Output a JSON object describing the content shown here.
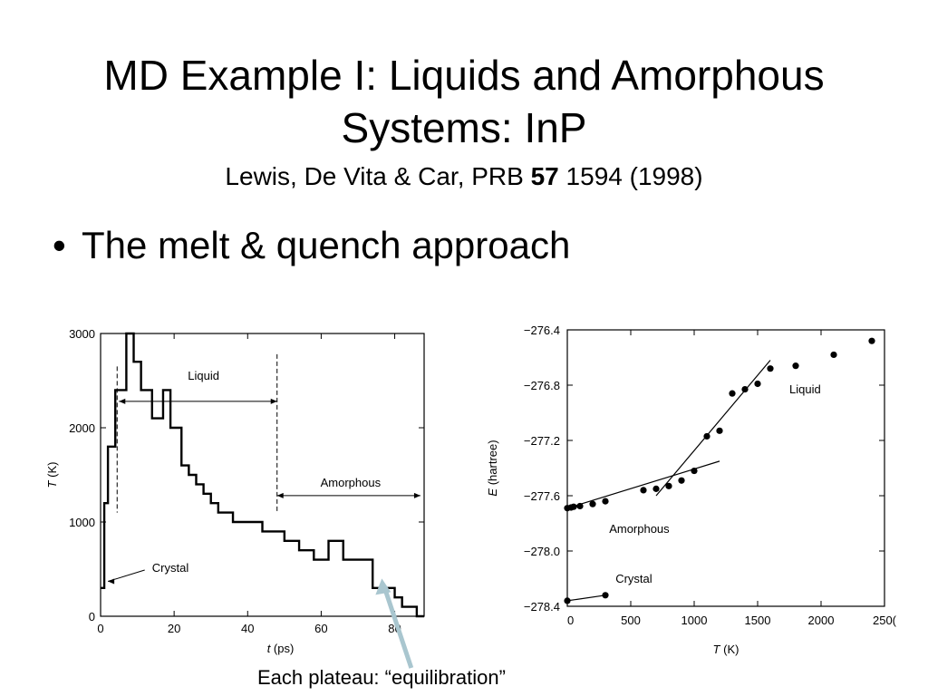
{
  "slide": {
    "title_line1": "MD Example I: Liquids and Amorphous",
    "title_line2": "Systems: InP",
    "citation_pre": "Lewis, De Vita & Car, PRB ",
    "citation_bold": "57",
    "citation_post": " 1594 (1998)",
    "bullet_symbol": "•",
    "bullet_text": "The melt & quench approach",
    "caption": "Each plateau: “equilibration”"
  },
  "chart_data": [
    {
      "type": "line",
      "title": "",
      "xlabel_var": "t",
      "xlabel_unit": "(ps)",
      "ylabel_var": "T",
      "ylabel_unit": "(K)",
      "xlim": [
        0,
        88
      ],
      "ylim": [
        0,
        3000
      ],
      "x_ticks": [
        0,
        20,
        40,
        60,
        80
      ],
      "y_ticks": [
        0,
        1000,
        2000,
        3000
      ],
      "series": [
        {
          "step_x": [
            0,
            1,
            2,
            4,
            5,
            7,
            9,
            11,
            14,
            17,
            19,
            22,
            24,
            26,
            28,
            30,
            32,
            34,
            36,
            38,
            40,
            44,
            48,
            50,
            54,
            58,
            62,
            66,
            70,
            74,
            78,
            80,
            82,
            84,
            86,
            88
          ],
          "step_y": [
            300,
            1200,
            1800,
            2400,
            2400,
            3000,
            2700,
            2400,
            2100,
            2400,
            2000,
            1600,
            1500,
            1400,
            1300,
            1200,
            1100,
            1100,
            1000,
            1000,
            1000,
            900,
            900,
            800,
            700,
            600,
            800,
            600,
            600,
            300,
            300,
            200,
            100,
            100,
            0,
            0
          ]
        }
      ],
      "annotations": {
        "liquid": "Liquid",
        "amorphous": "Amorphous",
        "crystal": "Crystal"
      }
    },
    {
      "type": "scatter",
      "title": "",
      "xlabel_var": "T",
      "xlabel_unit": "(K)",
      "ylabel_var": "E",
      "ylabel_unit": "(hartree)",
      "xlim": [
        0,
        2500
      ],
      "ylim": [
        -278.4,
        -276.4
      ],
      "x_ticks": [
        "0",
        "500",
        "1000",
        "1500",
        "2000",
        "250("
      ],
      "y_ticks": [
        "−276.4",
        "−276.8",
        "−277.2",
        "−277.6",
        "−278.0",
        "−278.4"
      ],
      "series": [
        {
          "points": [
            [
              0,
              -277.69
            ],
            [
              30,
              -277.685
            ],
            [
              50,
              -277.68
            ],
            [
              100,
              -277.675
            ],
            [
              200,
              -277.66
            ],
            [
              300,
              -277.64
            ],
            [
              600,
              -277.56
            ],
            [
              700,
              -277.55
            ],
            [
              800,
              -277.53
            ],
            [
              900,
              -277.49
            ],
            [
              1000,
              -277.42
            ],
            [
              1100,
              -277.17
            ],
            [
              1200,
              -277.13
            ],
            [
              1300,
              -276.86
            ],
            [
              1400,
              -276.83
            ],
            [
              1500,
              -276.79
            ],
            [
              1600,
              -276.68
            ],
            [
              1800,
              -276.66
            ],
            [
              2100,
              -276.58
            ],
            [
              2400,
              -276.48
            ]
          ]
        },
        {
          "points": [
            [
              0,
              -278.36
            ],
            [
              300,
              -278.32
            ]
          ]
        }
      ],
      "fit_lines": [
        {
          "x": [
            0,
            1200
          ],
          "y": [
            -277.69,
            -277.35
          ]
        },
        {
          "x": [
            700,
            1600
          ],
          "y": [
            -277.6,
            -276.62
          ]
        },
        {
          "x": [
            0,
            300
          ],
          "y": [
            -278.36,
            -278.32
          ]
        }
      ],
      "annotations": {
        "liquid": "Liquid",
        "amorphous": "Amorphous",
        "crystal": "Crystal"
      }
    }
  ]
}
